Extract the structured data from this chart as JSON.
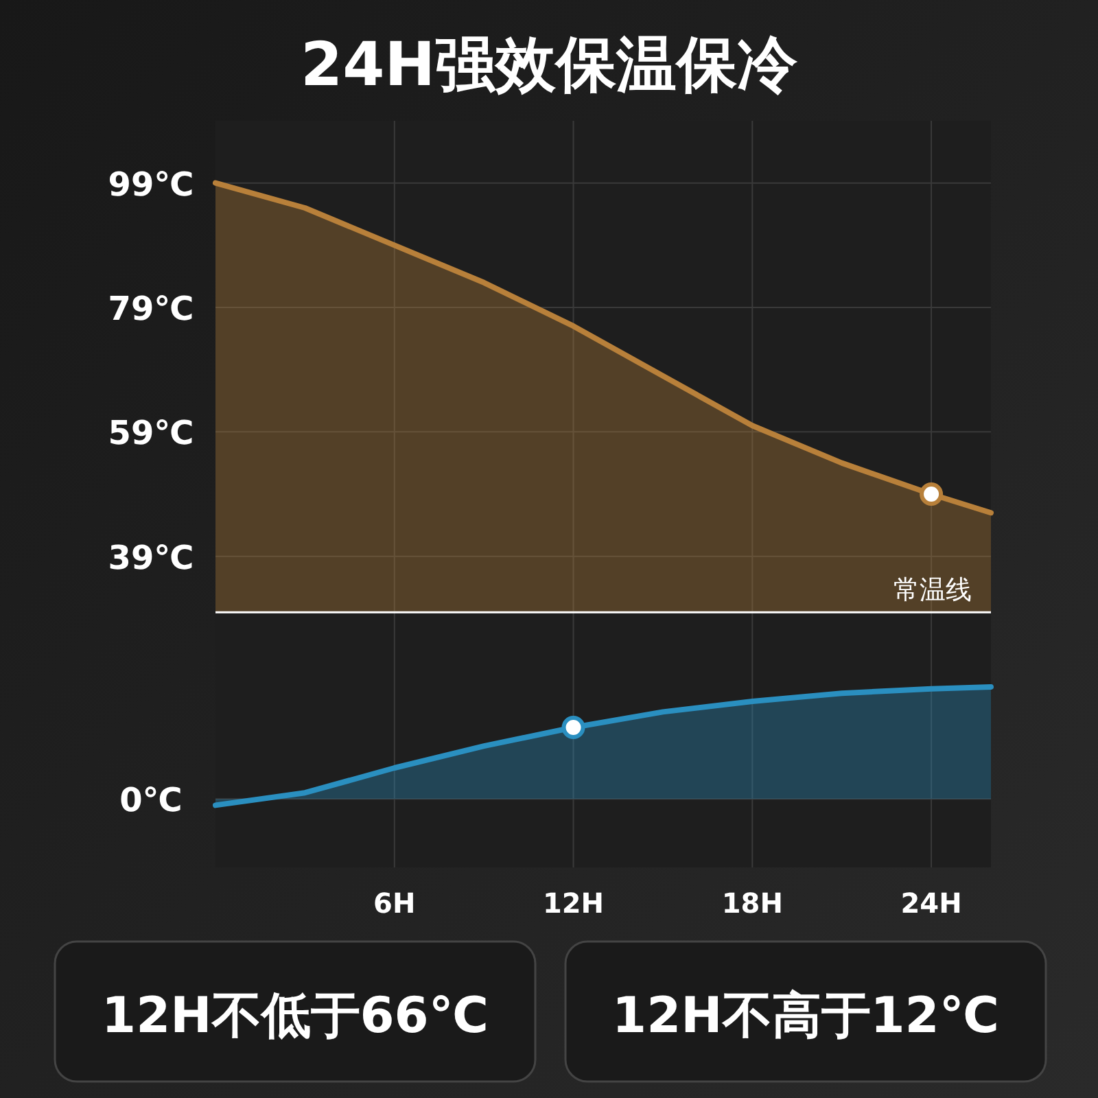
{
  "chart_data": {
    "type": "area",
    "title": "24H强效保温保冷",
    "xlim": [
      0,
      26
    ],
    "xticks": [
      {
        "value": 6,
        "label": "6H"
      },
      {
        "value": 12,
        "label": "12H"
      },
      {
        "value": 18,
        "label": "18H"
      },
      {
        "value": 24,
        "label": "24H"
      }
    ],
    "ylim": [
      -11,
      109
    ],
    "yticks": [
      {
        "value": 0,
        "label": "0℃"
      },
      {
        "value": 39,
        "label": "39℃"
      },
      {
        "value": 59,
        "label": "59℃"
      },
      {
        "value": 79,
        "label": "79℃"
      },
      {
        "value": 99,
        "label": "99℃"
      }
    ],
    "grid": true,
    "series": [
      {
        "color": "#b8803a",
        "x": [
          0,
          3,
          6,
          9,
          12,
          15,
          18,
          21,
          24,
          26
        ],
        "values": [
          99,
          95,
          89,
          83,
          76,
          68,
          60,
          54,
          49,
          46
        ]
      },
      {
        "color": "#2a8fc0",
        "x": [
          0,
          3,
          6,
          9,
          12,
          15,
          18,
          21,
          24,
          26
        ],
        "values": [
          -1,
          1,
          5,
          8.5,
          11.5,
          14,
          15.7,
          17,
          17.7,
          18
        ]
      },
      {
        "type": "scatter",
        "color": "#b8803a",
        "x": [
          24
        ],
        "values": [
          49
        ]
      },
      {
        "type": "scatter",
        "color": "#2a8fc0",
        "x": [
          12
        ],
        "values": [
          11.5
        ]
      }
    ],
    "ref_lines": [
      {
        "axis": "y",
        "value": 30,
        "label": "常温线",
        "color": "#ffffff"
      }
    ],
    "annotations": [
      "12H不低于66℃",
      "12H不高于12℃"
    ]
  }
}
